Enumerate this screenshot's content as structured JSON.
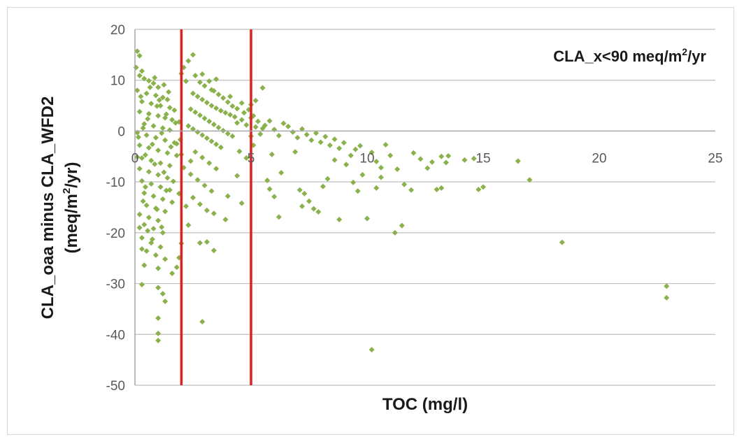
{
  "chart_data": {
    "type": "scatter",
    "title": "",
    "annotation": {
      "prefix": "CLA_x<90 meq/m",
      "sup": "2",
      "suffix": "/yr"
    },
    "xlabel": "TOC (mg/l)",
    "ylabel": {
      "line1": "CLA_oaa minus CLA_WFD2",
      "line2_prefix": "(meq/m",
      "line2_sup": "2",
      "line2_suffix": "/yr)"
    },
    "xlim": [
      0,
      25
    ],
    "ylim": [
      -50,
      20
    ],
    "xticks": [
      0,
      5,
      10,
      15,
      20,
      25
    ],
    "yticks": [
      20,
      10,
      0,
      -10,
      -20,
      -30,
      -40,
      -50
    ],
    "grid": "horizontal",
    "marker_color": "#8ab24c",
    "vertical_lines": [
      {
        "x": 2,
        "color": "#e02020"
      },
      {
        "x": 5,
        "color": "#e02020"
      }
    ],
    "points": [
      [
        0.1,
        15.7
      ],
      [
        0.2,
        14.8
      ],
      [
        0.05,
        12.5
      ],
      [
        0.3,
        11.8
      ],
      [
        0.2,
        10.9
      ],
      [
        0.4,
        10.3
      ],
      [
        0.6,
        9.9
      ],
      [
        0.8,
        9.4
      ],
      [
        1.0,
        8.6
      ],
      [
        0.1,
        8.0
      ],
      [
        0.5,
        7.4
      ],
      [
        0.9,
        7.0
      ],
      [
        1.2,
        6.6
      ],
      [
        1.4,
        6.2
      ],
      [
        0.3,
        5.8
      ],
      [
        0.7,
        5.4
      ],
      [
        1.1,
        5.0
      ],
      [
        1.5,
        4.6
      ],
      [
        1.7,
        4.1
      ],
      [
        0.2,
        3.8
      ],
      [
        0.6,
        3.4
      ],
      [
        1.0,
        3.0
      ],
      [
        1.3,
        2.6
      ],
      [
        1.6,
        2.2
      ],
      [
        1.9,
        1.8
      ],
      [
        0.4,
        1.4
      ],
      [
        0.8,
        1.0
      ],
      [
        1.2,
        0.6
      ],
      [
        1.5,
        0.2
      ],
      [
        0.1,
        -0.3
      ],
      [
        0.5,
        -0.8
      ],
      [
        0.9,
        -1.3
      ],
      [
        1.3,
        -1.8
      ],
      [
        1.7,
        -2.3
      ],
      [
        0.2,
        -2.8
      ],
      [
        0.6,
        -3.3
      ],
      [
        1.0,
        -3.8
      ],
      [
        1.4,
        -4.3
      ],
      [
        1.8,
        -4.8
      ],
      [
        0.3,
        -5.3
      ],
      [
        0.7,
        -5.8
      ],
      [
        1.1,
        -6.3
      ],
      [
        1.5,
        -6.8
      ],
      [
        0.2,
        -7.4
      ],
      [
        0.6,
        -8.0
      ],
      [
        1.0,
        -8.6
      ],
      [
        1.4,
        -9.2
      ],
      [
        0.3,
        -9.8
      ],
      [
        0.7,
        -10.4
      ],
      [
        1.1,
        -11.0
      ],
      [
        1.5,
        -11.6
      ],
      [
        0.4,
        -12.2
      ],
      [
        0.8,
        -12.8
      ],
      [
        1.2,
        -13.4
      ],
      [
        1.6,
        -14.0
      ],
      [
        0.5,
        -14.6
      ],
      [
        0.9,
        -15.2
      ],
      [
        1.3,
        -15.8
      ],
      [
        0.2,
        -16.4
      ],
      [
        0.6,
        -17.0
      ],
      [
        1.0,
        -17.6
      ],
      [
        0.4,
        -18.4
      ],
      [
        0.8,
        -19.2
      ],
      [
        1.2,
        -20.0
      ],
      [
        0.3,
        -21.0
      ],
      [
        0.7,
        -22.0
      ],
      [
        1.1,
        -22.8
      ],
      [
        0.5,
        -23.6
      ],
      [
        0.9,
        -24.4
      ],
      [
        1.3,
        -25.2
      ],
      [
        0.4,
        -26.4
      ],
      [
        1.0,
        -27.0
      ],
      [
        1.6,
        -28.0
      ],
      [
        1.0,
        -30.8
      ],
      [
        1.2,
        -32.0
      ],
      [
        1.3,
        -33.5
      ],
      [
        1.0,
        -36.8
      ],
      [
        1.0,
        -39.8
      ],
      [
        1.0,
        -41.2
      ],
      [
        0.3,
        -30.2
      ],
      [
        1.8,
        -26.8
      ],
      [
        1.9,
        -24.9
      ],
      [
        2.0,
        -22.1
      ],
      [
        2.2,
        -14.8
      ],
      [
        2.3,
        -18.5
      ],
      [
        2.1,
        -7.2
      ],
      [
        2.4,
        -5.9
      ],
      [
        1.8,
        -2.5
      ],
      [
        2.0,
        -4.6
      ],
      [
        1.9,
        -12.3
      ],
      [
        2.1,
        12.5
      ],
      [
        2.3,
        13.8
      ],
      [
        2.5,
        15.0
      ],
      [
        2.0,
        11.3
      ],
      [
        2.2,
        9.8
      ],
      [
        2.6,
        10.9
      ],
      [
        2.8,
        9.6
      ],
      [
        3.0,
        8.9
      ],
      [
        3.3,
        8.1
      ],
      [
        3.5,
        10.2
      ],
      [
        2.5,
        7.4
      ],
      [
        2.7,
        6.8
      ],
      [
        2.9,
        6.2
      ],
      [
        3.1,
        5.6
      ],
      [
        3.3,
        5.0
      ],
      [
        3.5,
        4.5
      ],
      [
        3.7,
        4.0
      ],
      [
        3.9,
        3.6
      ],
      [
        4.1,
        3.2
      ],
      [
        4.3,
        2.8
      ],
      [
        2.4,
        4.3
      ],
      [
        2.6,
        3.7
      ],
      [
        2.8,
        3.1
      ],
      [
        3.0,
        2.5
      ],
      [
        3.2,
        1.9
      ],
      [
        3.4,
        1.3
      ],
      [
        3.6,
        0.7
      ],
      [
        3.8,
        0.1
      ],
      [
        4.0,
        -0.5
      ],
      [
        4.2,
        -1.0
      ],
      [
        2.3,
        1.0
      ],
      [
        2.5,
        0.4
      ],
      [
        2.7,
        -0.2
      ],
      [
        2.9,
        -0.8
      ],
      [
        3.1,
        -1.4
      ],
      [
        3.3,
        -2.0
      ],
      [
        3.5,
        -2.6
      ],
      [
        3.7,
        -3.2
      ],
      [
        2.6,
        -4.1
      ],
      [
        2.9,
        -5.2
      ],
      [
        3.2,
        -6.3
      ],
      [
        3.5,
        -7.4
      ],
      [
        2.4,
        -8.5
      ],
      [
        2.7,
        -9.6
      ],
      [
        3.0,
        -10.7
      ],
      [
        3.3,
        -11.8
      ],
      [
        2.5,
        -13.1
      ],
      [
        2.8,
        -14.4
      ],
      [
        3.1,
        -15.6
      ],
      [
        3.4,
        -16.2
      ],
      [
        2.8,
        -22.0
      ],
      [
        3.1,
        -21.8
      ],
      [
        3.4,
        -23.5
      ],
      [
        2.9,
        -37.5
      ],
      [
        3.9,
        -17.4
      ],
      [
        4.4,
        -8.8
      ],
      [
        4.0,
        -12.8
      ],
      [
        4.6,
        -14.2
      ],
      [
        4.8,
        -5.3
      ],
      [
        4.5,
        -4.0
      ],
      [
        4.4,
        1.6
      ],
      [
        4.6,
        2.2
      ],
      [
        4.8,
        1.2
      ],
      [
        5.0,
        2.6
      ],
      [
        5.2,
        0.8
      ],
      [
        4.7,
        3.6
      ],
      [
        4.9,
        4.2
      ],
      [
        5.1,
        3.0
      ],
      [
        5.3,
        1.9
      ],
      [
        5.5,
        0.5
      ],
      [
        5.0,
        5.2
      ],
      [
        5.2,
        6.0
      ],
      [
        5.0,
        -1.0
      ],
      [
        5.1,
        -2.8
      ],
      [
        5.4,
        -0.6
      ],
      [
        5.6,
        1.1
      ],
      [
        5.8,
        2.0
      ],
      [
        6.0,
        0.3
      ],
      [
        6.2,
        -0.9
      ],
      [
        6.4,
        1.5
      ],
      [
        5.7,
        -9.7
      ],
      [
        5.8,
        -11.4
      ],
      [
        6.0,
        -12.9
      ],
      [
        6.3,
        -8.2
      ],
      [
        5.9,
        -4.6
      ],
      [
        6.2,
        -16.9
      ],
      [
        5.5,
        8.5
      ],
      [
        6.6,
        0.9
      ],
      [
        6.8,
        -0.2
      ],
      [
        7.0,
        -1.3
      ],
      [
        7.2,
        0.4
      ],
      [
        7.4,
        -0.7
      ],
      [
        7.6,
        -1.8
      ],
      [
        7.8,
        -0.4
      ],
      [
        8.0,
        -2.2
      ],
      [
        8.2,
        -1.1
      ],
      [
        8.4,
        -2.8
      ],
      [
        8.6,
        -1.6
      ],
      [
        8.8,
        -3.4
      ],
      [
        9.0,
        -2.3
      ],
      [
        6.9,
        -4.1
      ],
      [
        7.1,
        -11.6
      ],
      [
        7.3,
        -12.3
      ],
      [
        7.5,
        -13.8
      ],
      [
        7.7,
        -15.3
      ],
      [
        7.2,
        -14.8
      ],
      [
        7.9,
        -15.9
      ],
      [
        8.1,
        -10.9
      ],
      [
        8.3,
        -9.4
      ],
      [
        8.6,
        -5.7
      ],
      [
        8.8,
        -17.4
      ],
      [
        9.1,
        -6.6
      ],
      [
        9.3,
        -4.8
      ],
      [
        9.5,
        -3.6
      ],
      [
        9.7,
        -2.9
      ],
      [
        9.4,
        -10.1
      ],
      [
        9.6,
        -11.8
      ],
      [
        9.8,
        -8.6
      ],
      [
        10.0,
        -17.2
      ],
      [
        10.2,
        -4.2
      ],
      [
        10.4,
        -6.0
      ],
      [
        10.6,
        -7.2
      ],
      [
        10.8,
        -2.7
      ],
      [
        10.4,
        -11.2
      ],
      [
        10.6,
        -9.1
      ],
      [
        10.2,
        -43.0
      ],
      [
        11.0,
        -4.8
      ],
      [
        11.2,
        -20.0
      ],
      [
        11.3,
        -7.5
      ],
      [
        11.5,
        -18.6
      ],
      [
        11.6,
        -10.5
      ],
      [
        11.9,
        -11.6
      ],
      [
        12.3,
        -5.5
      ],
      [
        12.6,
        -7.3
      ],
      [
        12.8,
        -6.1
      ],
      [
        13.0,
        -11.5
      ],
      [
        13.2,
        -11.2
      ],
      [
        13.4,
        -6.2
      ],
      [
        13.2,
        -5.0
      ],
      [
        14.2,
        -5.7
      ],
      [
        14.8,
        -11.5
      ],
      [
        15.0,
        -11.0
      ],
      [
        14.6,
        -5.4
      ],
      [
        17.0,
        -9.6
      ],
      [
        18.4,
        -21.9
      ],
      [
        22.9,
        -30.5
      ],
      [
        22.9,
        -32.8
      ],
      [
        16.5,
        -5.9
      ],
      [
        12.0,
        -4.3
      ],
      [
        13.5,
        -4.9
      ],
      [
        0.15,
        -1.2
      ],
      [
        0.35,
        0.6
      ],
      [
        0.55,
        2.4
      ],
      [
        0.75,
        -2.6
      ],
      [
        0.95,
        4.9
      ],
      [
        1.15,
        -0.4
      ],
      [
        1.35,
        3.3
      ],
      [
        1.55,
        -3.1
      ],
      [
        1.75,
        1.6
      ],
      [
        1.95,
        -1.7
      ],
      [
        0.25,
        6.8
      ],
      [
        0.45,
        -4.7
      ],
      [
        0.65,
        8.6
      ],
      [
        0.85,
        -6.5
      ],
      [
        1.05,
        6.1
      ],
      [
        1.25,
        -8.1
      ],
      [
        1.45,
        7.7
      ],
      [
        1.65,
        -9.9
      ],
      [
        0.35,
        -13.8
      ],
      [
        0.55,
        -19.6
      ],
      [
        0.75,
        -21.3
      ],
      [
        0.95,
        -15.4
      ],
      [
        1.15,
        -18.9
      ],
      [
        1.35,
        -11.7
      ],
      [
        0.1,
        -5.1
      ],
      [
        0.2,
        -19.0
      ],
      [
        0.3,
        -23.2
      ],
      [
        0.45,
        -11.0
      ],
      [
        0.85,
        10.5
      ],
      [
        1.25,
        9.1
      ],
      [
        3.6,
        7.2
      ],
      [
        3.8,
        6.5
      ],
      [
        4.0,
        5.7
      ],
      [
        4.2,
        4.9
      ],
      [
        4.4,
        4.4
      ],
      [
        4.6,
        5.5
      ],
      [
        3.4,
        7.9
      ],
      [
        4.1,
        6.8
      ],
      [
        2.9,
        11.2
      ],
      [
        3.2,
        9.8
      ]
    ]
  }
}
